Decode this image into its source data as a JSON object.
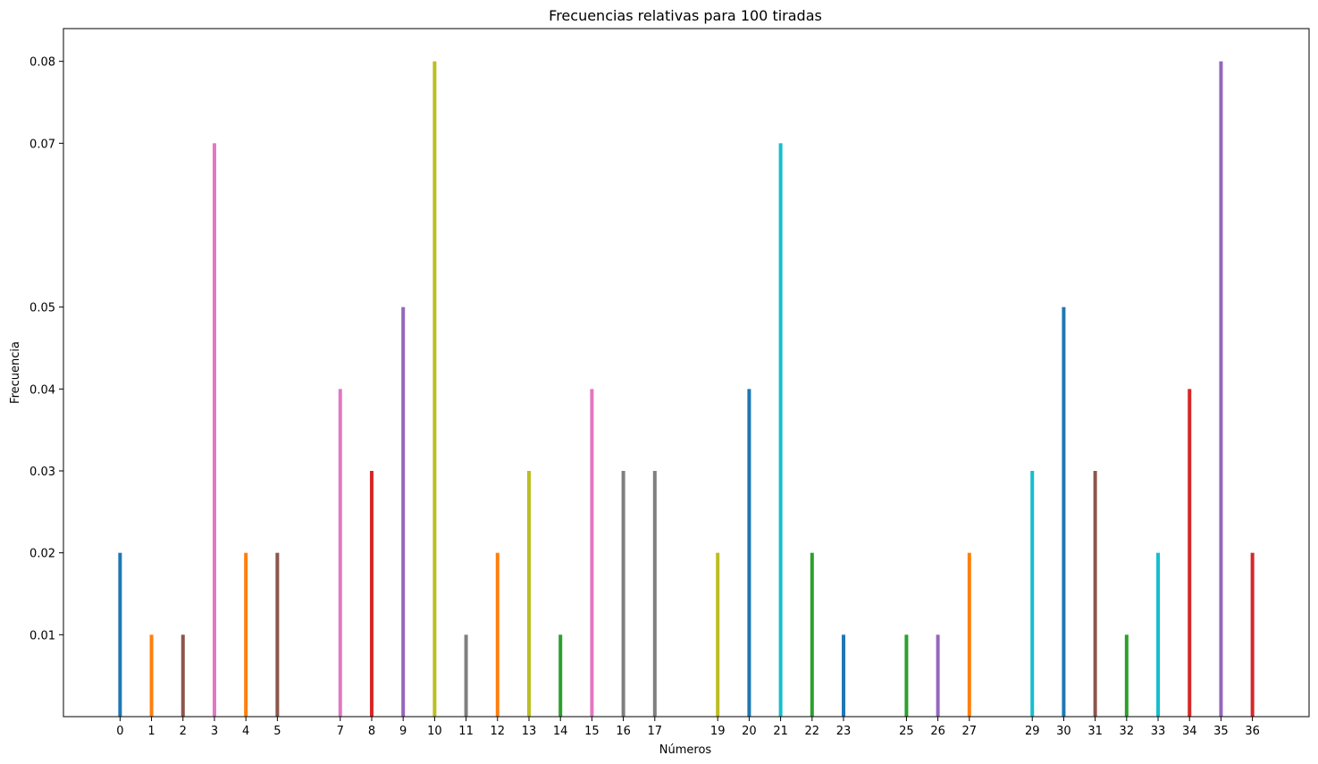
{
  "chart_data": {
    "type": "bar",
    "title": "Frecuencias relativas para 100 tiradas",
    "xlabel": "Números",
    "ylabel": "Frecuencia",
    "categories": [
      0,
      1,
      2,
      3,
      4,
      5,
      7,
      8,
      9,
      10,
      11,
      12,
      13,
      14,
      15,
      16,
      17,
      19,
      20,
      21,
      22,
      23,
      25,
      26,
      27,
      29,
      30,
      31,
      32,
      33,
      34,
      35,
      36
    ],
    "values": [
      0.02,
      0.01,
      0.01,
      0.07,
      0.02,
      0.02,
      0.04,
      0.03,
      0.05,
      0.08,
      0.01,
      0.02,
      0.03,
      0.01,
      0.04,
      0.03,
      0.03,
      0.02,
      0.04,
      0.07,
      0.02,
      0.01,
      0.01,
      0.01,
      0.02,
      0.03,
      0.05,
      0.03,
      0.01,
      0.02,
      0.04,
      0.08,
      0.02
    ],
    "colors": [
      "#1f77b4",
      "#ff7f0e",
      "#8c564b",
      "#e377c2",
      "#ff7f0e",
      "#8c564b",
      "#e377c2",
      "#d62728",
      "#9467bd",
      "#bcbd22",
      "#7f7f7f",
      "#ff7f0e",
      "#bcbd22",
      "#2ca02c",
      "#e377c2",
      "#7f7f7f",
      "#7f7f7f",
      "#bcbd22",
      "#1f77b4",
      "#17becf",
      "#2ca02c",
      "#1f77b4",
      "#2ca02c",
      "#9467bd",
      "#ff7f0e",
      "#17becf",
      "#1f77b4",
      "#8c564b",
      "#2ca02c",
      "#17becf",
      "#d62728",
      "#9467bd",
      "#d62728"
    ],
    "yticks": [
      "0.01",
      "0.02",
      "0.03",
      "0.04",
      "0.05",
      "0.07",
      "0.08"
    ],
    "xlim": [
      -1.8,
      37.8
    ],
    "ylim": [
      0,
      0.084
    ],
    "grid": false,
    "legend": "none"
  }
}
